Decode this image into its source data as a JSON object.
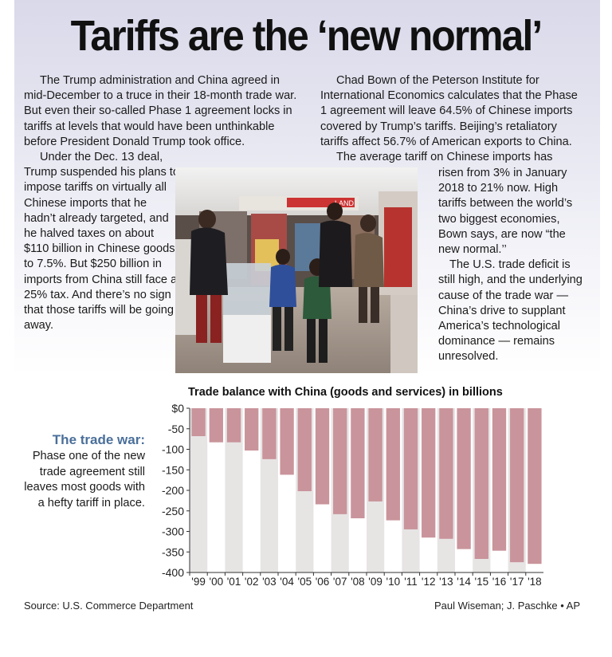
{
  "headline": "Tariffs are the ‘new normal’",
  "body_left": [
    "The Trump administration and China agreed in mid-December to a truce in their 18-month trade war. But even their so-called Phase 1 agreement locks in tariffs at levels that would have been unthinkable before President Donald Trump took office.",
    "Under the Dec. 13 deal, Trump suspended his plans to impose tariffs on virtually all Chinese imports that he hadn’t already targeted, and he halved taxes on about $110 billion in Chinese goods to 7.5%. But $250 billion in imports from China still face a 25% tax. And there’s no sign that those tariffs will be going away."
  ],
  "body_right_top": [
    "Chad Bown of the Peterson Institute for International Economics calculates that the Phase 1 agreement will leave 64.5% of Chinese imports covered by Trump’s tariffs. Beijing’s retaliatory tariffs affect 56.7% of American exports to China.",
    "The average tariff on Chinese imports has"
  ],
  "body_right_bottom": [
    "risen from 3% in January 2018 to 21% now. High tariffs between the world’s two biggest economies, Bown says, are now “the new normal.’’",
    "The U.S. trade deficit is still high, and the underlying cause of the trade war — China’s drive to supplant America’s technological dominance — remains unresolved."
  ],
  "sidebar": {
    "title": "The trade war:",
    "text": "Phase one of the new trade agreement still leaves most goods with a hefty tariff in place."
  },
  "photo_sign": "LAND",
  "source": "Source: U.S. Commerce Department",
  "credit": "Paul Wiseman; J. Paschke • AP",
  "colors": {
    "bar": "#c9949b",
    "stripe": "#e7e4e4",
    "sidebar_title": "#4a6f9a"
  },
  "chart_data": {
    "type": "bar",
    "title": "Trade balance with China (goods and services) in billions",
    "categories": [
      "'99",
      "'00",
      "'01",
      "'02",
      "'03",
      "'04",
      "'05",
      "'06",
      "'07",
      "'08",
      "'09",
      "'10",
      "'11",
      "'12",
      "'13",
      "'14",
      "'15",
      "'16",
      "'17",
      "'18"
    ],
    "values": [
      -68,
      -83,
      -83,
      -103,
      -124,
      -162,
      -202,
      -234,
      -258,
      -268,
      -227,
      -273,
      -295,
      -315,
      -318,
      -343,
      -367,
      -347,
      -375,
      -379
    ],
    "ylim": [
      -400,
      0
    ],
    "yticks": [
      0,
      -50,
      -100,
      -150,
      -200,
      -250,
      -300,
      -350,
      -400
    ],
    "ytick_labels": [
      "$0",
      "-50",
      "-100",
      "-150",
      "-200",
      "-250",
      "-300",
      "-350",
      "-400"
    ],
    "grid": false,
    "legend": "none"
  }
}
